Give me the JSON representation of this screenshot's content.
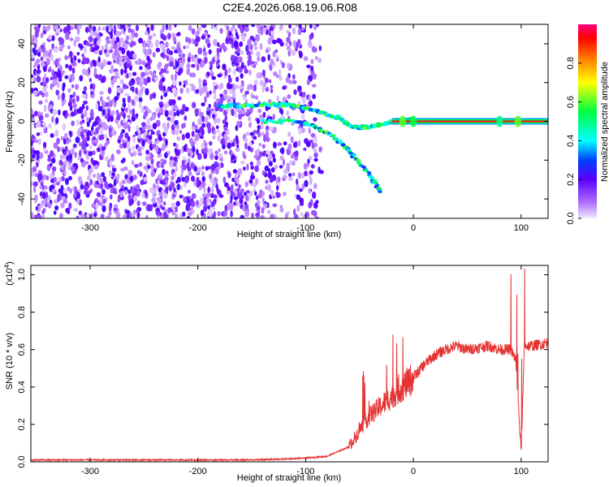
{
  "title": "C2E4.2026.068.19.06.R08",
  "chart_data": [
    {
      "type": "heatmap",
      "name": "spectrogram",
      "xlabel": "Height of straight line (km)",
      "ylabel": "Frequency (Hz)",
      "xlim": [
        -355,
        125
      ],
      "ylim": [
        -50,
        50
      ],
      "xticks": [
        "-300",
        "-200",
        "-100",
        "0",
        "100"
      ],
      "yticks": [
        "-40",
        "-20",
        "0",
        "20",
        "40"
      ],
      "colorbar": {
        "label": "Normalized spectral amplitude",
        "ticks": [
          "0.0",
          "0.2",
          "0.4",
          "0.6",
          "0.8"
        ],
        "range": [
          0,
          1
        ],
        "colors": [
          "#e8e0ff",
          "#7a00ff",
          "#0000ff",
          "#00ffff",
          "#00ff00",
          "#ffff00",
          "#ff8000",
          "#ff0000",
          "#ff0080"
        ]
      },
      "features": [
        {
          "name": "noise field",
          "x_range": [
            -355,
            -85
          ],
          "freq_range": [
            -50,
            50
          ],
          "amplitude": 0.15
        },
        {
          "name": "upper branch",
          "points": [
            [
              -180,
              8
            ],
            [
              -160,
              8
            ],
            [
              -130,
              9
            ],
            [
              -110,
              8
            ],
            [
              -90,
              5
            ],
            [
              -70,
              2
            ],
            [
              -55,
              -3
            ],
            [
              -40,
              -3
            ],
            [
              -20,
              0
            ],
            [
              0,
              1
            ]
          ]
        },
        {
          "name": "lower branch",
          "points": [
            [
              -140,
              0
            ],
            [
              -110,
              0
            ],
            [
              -95,
              -2
            ],
            [
              -80,
              -6
            ],
            [
              -65,
              -12
            ],
            [
              -55,
              -18
            ],
            [
              -40,
              -28
            ],
            [
              -30,
              -37
            ]
          ]
        },
        {
          "name": "carrier line",
          "x_range": [
            -20,
            125
          ],
          "freq": 0,
          "amplitude": 1.0
        }
      ]
    },
    {
      "type": "line",
      "name": "snr",
      "xlabel": "Height of straight line (km)",
      "ylabel": "SNR (10 * v/v)",
      "scale_label": "(x10",
      "scale_exp": "4",
      "xlim": [
        -355,
        125
      ],
      "ylim": [
        0,
        1.05
      ],
      "xticks": [
        "-300",
        "-200",
        "-100",
        "0",
        "100"
      ],
      "yticks": [
        "0.0",
        "0.2",
        "0.4",
        "0.6",
        "0.8",
        "1.0"
      ],
      "color": "#e53333",
      "x": [
        -355,
        -300,
        -250,
        -200,
        -150,
        -120,
        -100,
        -80,
        -60,
        -50,
        -40,
        -30,
        -20,
        -10,
        0,
        10,
        20,
        30,
        40,
        50,
        60,
        70,
        80,
        90,
        95,
        100,
        103,
        110,
        120,
        125
      ],
      "y": [
        0.01,
        0.01,
        0.01,
        0.01,
        0.01,
        0.015,
        0.02,
        0.03,
        0.08,
        0.17,
        0.25,
        0.3,
        0.35,
        0.4,
        0.45,
        0.52,
        0.57,
        0.6,
        0.62,
        0.6,
        0.61,
        0.62,
        0.6,
        0.6,
        0.55,
        0.05,
        0.62,
        0.62,
        0.63,
        0.64
      ]
    }
  ]
}
